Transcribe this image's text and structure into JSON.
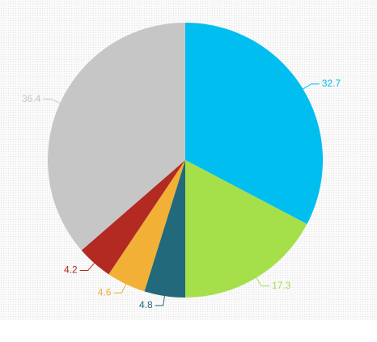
{
  "chart_data": {
    "type": "pie",
    "values": [
      32.7,
      17.3,
      4.8,
      4.6,
      4.2,
      36.4
    ],
    "colors": [
      "#00bff0",
      "#a5e04b",
      "#226a7b",
      "#f2b036",
      "#b22a22",
      "#c6c6c6"
    ]
  }
}
